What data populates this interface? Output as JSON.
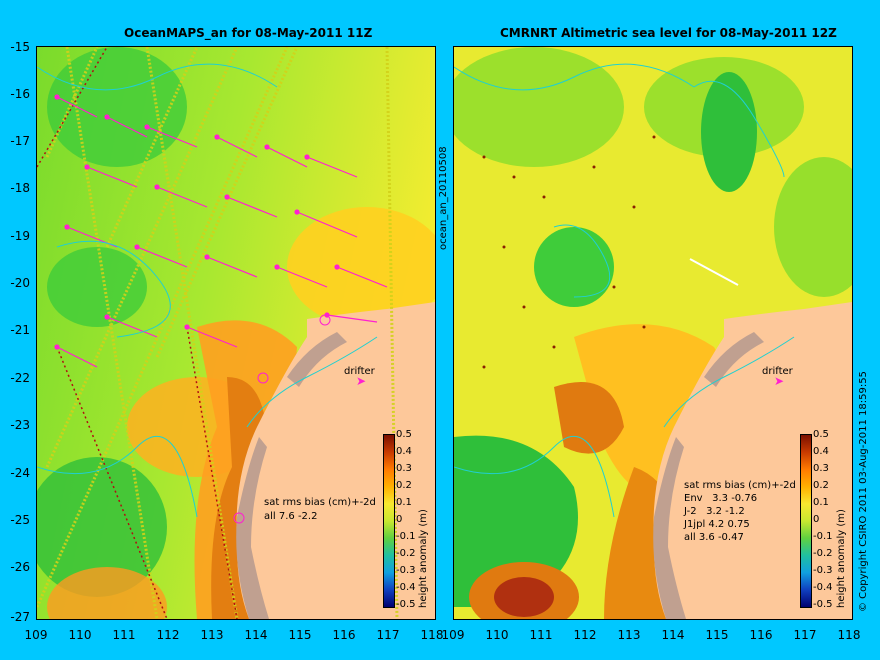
{
  "left": {
    "title": "OceanMAPS_an for 08-May-2011 11Z",
    "side_label": "ocean_an_20110508",
    "legend": [
      "sat rms bias (cm)+-2d",
      "all 7.6 -2.2"
    ],
    "drifter": "drifter"
  },
  "right": {
    "title": "CMRNRT Altimetric sea level  for 08-May-2011 12Z",
    "legend": [
      "sat rms bias (cm)+-2d",
      "Env   3.3 -0.76",
      "J-2   3.2 -1.2",
      "J1jpl 4.2 0.75",
      "all 3.6 -0.47"
    ],
    "drifter": "drifter",
    "copyright": "© Copyright CSIRO 2011  03-Aug-2011 18:59:55"
  },
  "y_ticks": [
    "-15",
    "-16",
    "-17",
    "-18",
    "-19",
    "-20",
    "-21",
    "-22",
    "-23",
    "-24",
    "-25",
    "-26",
    "-27"
  ],
  "x_ticks_left": [
    "109",
    "110",
    "111",
    "112",
    "113",
    "114",
    "115",
    "116",
    "117",
    "118"
  ],
  "x_ticks_right": [
    "109",
    "110",
    "111",
    "112",
    "113",
    "114",
    "115",
    "116",
    "117",
    "118"
  ],
  "colorbar": {
    "ticks": [
      "0.5",
      "0.4",
      "0.3",
      "0.2",
      "0.1",
      "0",
      "-0.1",
      "-0.2",
      "-0.3",
      "-0.4",
      "-0.5"
    ],
    "label": "height anomaly (m)"
  },
  "colors": {
    "background": "#00c8ff",
    "land": "#fdc89a",
    "shelf": "#c0a090"
  }
}
